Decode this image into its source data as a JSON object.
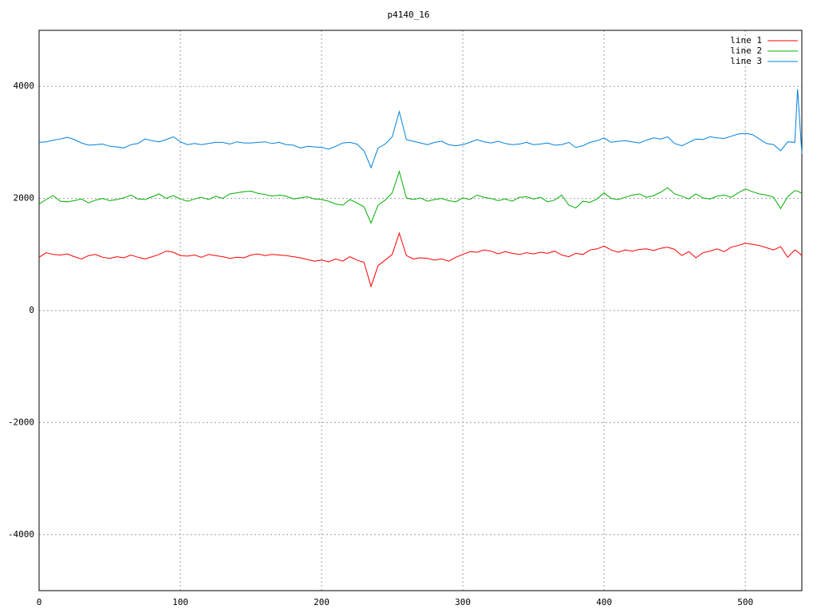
{
  "chart_data": {
    "type": "line",
    "title": "p4140_16",
    "x": [
      0,
      5,
      10,
      15,
      20,
      25,
      30,
      35,
      40,
      45,
      50,
      55,
      60,
      65,
      70,
      75,
      80,
      85,
      90,
      95,
      100,
      105,
      110,
      115,
      120,
      125,
      130,
      135,
      140,
      145,
      150,
      155,
      160,
      165,
      170,
      175,
      180,
      185,
      190,
      195,
      200,
      205,
      210,
      215,
      220,
      225,
      230,
      235,
      240,
      245,
      250,
      255,
      260,
      265,
      270,
      275,
      280,
      285,
      290,
      295,
      300,
      305,
      310,
      315,
      320,
      325,
      330,
      335,
      340,
      345,
      350,
      355,
      360,
      365,
      370,
      375,
      380,
      385,
      390,
      395,
      400,
      405,
      410,
      415,
      420,
      425,
      430,
      435,
      440,
      445,
      450,
      455,
      460,
      465,
      470,
      475,
      480,
      485,
      490,
      495,
      500,
      505,
      510,
      515,
      520,
      525,
      530,
      535,
      537,
      540
    ],
    "series": [
      {
        "name": "line 1",
        "color": "#ff0000",
        "values": [
          950,
          1030,
          1000,
          990,
          1010,
          960,
          920,
          980,
          1000,
          950,
          930,
          960,
          940,
          990,
          950,
          920,
          960,
          1000,
          1060,
          1040,
          980,
          970,
          990,
          950,
          1000,
          980,
          960,
          930,
          950,
          940,
          990,
          1010,
          980,
          1000,
          990,
          980,
          960,
          940,
          910,
          880,
          900,
          870,
          920,
          880,
          960,
          900,
          860,
          430,
          800,
          900,
          1000,
          1380,
          980,
          920,
          940,
          930,
          900,
          920,
          880,
          950,
          1000,
          1050,
          1040,
          1080,
          1060,
          1010,
          1050,
          1020,
          1000,
          1030,
          1010,
          1040,
          1020,
          1060,
          990,
          960,
          1020,
          1000,
          1080,
          1100,
          1150,
          1080,
          1040,
          1080,
          1060,
          1090,
          1100,
          1070,
          1110,
          1130,
          1090,
          980,
          1050,
          940,
          1030,
          1060,
          1100,
          1050,
          1130,
          1160,
          1200,
          1180,
          1160,
          1120,
          1080,
          1140,
          950,
          1080,
          1050,
          980
        ]
      },
      {
        "name": "line 2",
        "color": "#00b000",
        "values": [
          1900,
          1980,
          2050,
          1950,
          1940,
          1960,
          1990,
          1920,
          1970,
          2000,
          1960,
          1980,
          2010,
          2060,
          1990,
          1980,
          2030,
          2080,
          2000,
          2050,
          1990,
          1950,
          1990,
          2020,
          1980,
          2040,
          2000,
          2080,
          2100,
          2120,
          2130,
          2090,
          2070,
          2040,
          2060,
          2040,
          1990,
          2010,
          2030,
          1990,
          1980,
          1950,
          1900,
          1880,
          1980,
          1920,
          1850,
          1560,
          1880,
          1970,
          2100,
          2480,
          2010,
          1980,
          2010,
          1950,
          1980,
          2000,
          1960,
          1940,
          2010,
          1980,
          2060,
          2020,
          2000,
          1960,
          1990,
          1950,
          2020,
          2030,
          1990,
          2020,
          1940,
          1970,
          2060,
          1880,
          1830,
          1950,
          1930,
          1990,
          2100,
          2000,
          1980,
          2020,
          2060,
          2080,
          2020,
          2050,
          2110,
          2190,
          2080,
          2040,
          1990,
          2080,
          2010,
          1990,
          2040,
          2060,
          2020,
          2100,
          2170,
          2120,
          2080,
          2060,
          2020,
          1820,
          2030,
          2140,
          2130,
          2090
        ]
      },
      {
        "name": "line 3",
        "color": "#0080e0",
        "values": [
          3000,
          3010,
          3040,
          3060,
          3090,
          3050,
          2990,
          2950,
          2960,
          2970,
          2930,
          2920,
          2900,
          2960,
          2980,
          3060,
          3030,
          3010,
          3050,
          3100,
          3010,
          2960,
          2980,
          2960,
          2980,
          3000,
          3000,
          2970,
          3010,
          2990,
          2990,
          3000,
          3010,
          2980,
          3000,
          2960,
          2950,
          2900,
          2930,
          2920,
          2910,
          2880,
          2930,
          2990,
          3000,
          2970,
          2850,
          2550,
          2900,
          2970,
          3100,
          3550,
          3050,
          3020,
          2990,
          2960,
          3000,
          3020,
          2960,
          2940,
          2960,
          3000,
          3050,
          3010,
          2990,
          3020,
          2980,
          2960,
          2970,
          3000,
          2960,
          2970,
          2990,
          2950,
          2960,
          3000,
          2910,
          2940,
          3000,
          3030,
          3080,
          3000,
          3020,
          3030,
          3010,
          2990,
          3040,
          3080,
          3060,
          3100,
          2980,
          2940,
          3000,
          3060,
          3050,
          3100,
          3080,
          3070,
          3110,
          3150,
          3160,
          3140,
          3060,
          2980,
          2960,
          2850,
          3010,
          3000,
          3950,
          2800
        ]
      }
    ],
    "xlim": [
      0,
      540
    ],
    "ylim": [
      -5000,
      5000
    ],
    "xticks": [
      0,
      100,
      200,
      300,
      400,
      500
    ],
    "yticks": [
      -4000,
      -2000,
      0,
      2000,
      4000
    ],
    "grid": true,
    "legend": "top-right"
  }
}
